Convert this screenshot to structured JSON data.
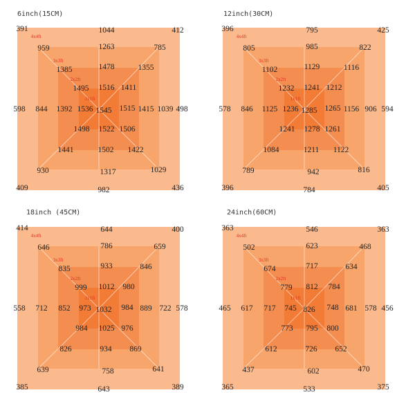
{
  "chart_data": {
    "type": "table",
    "panels": [
      {
        "title": "6inch(15CM)",
        "size_labels": [
          "4x4ft",
          "3x3ft",
          "2x2ft",
          "1x1ft"
        ],
        "rings": [
          {
            "tl": "391",
            "t": "1044",
            "tr": "412",
            "l": "598",
            "r": "498",
            "bl": "409",
            "b": "982",
            "br": "436"
          },
          {
            "tl": "959",
            "t": "1263",
            "tr": "785",
            "l": "844",
            "r": "1039",
            "bl": "930",
            "b": "1317",
            "br": "1029"
          },
          {
            "tl": "1385",
            "t": "1478",
            "tr": "1355",
            "l": "1392",
            "r": "1415",
            "bl": "1441",
            "b": "1502",
            "br": "1422"
          },
          {
            "tl": "1495",
            "t": "1516",
            "tr": "1411",
            "l": "1536",
            "r": "1515",
            "bl": "1498",
            "b": "1522",
            "br": "1506"
          }
        ],
        "center": "1545"
      },
      {
        "title": "12inch(30CM)",
        "size_labels": [
          "4x4ft",
          "3x3ft",
          "2x2ft",
          "1x1ft"
        ],
        "rings": [
          {
            "tl": "396",
            "t": "795",
            "tr": "425",
            "l": "578",
            "r": "594",
            "bl": "396",
            "b": "784",
            "br": "405"
          },
          {
            "tl": "805",
            "t": "985",
            "tr": "822",
            "l": "846",
            "r": "906",
            "bl": "789",
            "b": "942",
            "br": "816"
          },
          {
            "tl": "1102",
            "t": "1129",
            "tr": "1116",
            "l": "1125",
            "r": "1156",
            "bl": "1084",
            "b": "1211",
            "br": "1122"
          },
          {
            "tl": "1232",
            "t": "1241",
            "tr": "1212",
            "l": "1236",
            "r": "1265",
            "bl": "1241",
            "b": "1278",
            "br": "1261"
          }
        ],
        "center": "1285"
      },
      {
        "title": "18inch (45CM)",
        "size_labels": [
          "4x4ft",
          "3x3ft",
          "2x2ft",
          "1x1ft"
        ],
        "rings": [
          {
            "tl": "414",
            "t": "644",
            "tr": "400",
            "l": "558",
            "r": "578",
            "bl": "385",
            "b": "643",
            "br": "389"
          },
          {
            "tl": "646",
            "t": "786",
            "tr": "659",
            "l": "712",
            "r": "722",
            "bl": "639",
            "b": "758",
            "br": "641"
          },
          {
            "tl": "835",
            "t": "933",
            "tr": "846",
            "l": "852",
            "r": "889",
            "bl": "826",
            "b": "934",
            "br": "869"
          },
          {
            "tl": "999",
            "t": "1012",
            "tr": "980",
            "l": "973",
            "r": "984",
            "bl": "984",
            "b": "1025",
            "br": "976"
          }
        ],
        "center": "1032"
      },
      {
        "title": "24inch(60CM)",
        "size_labels": [
          "4x4ft",
          "3x3ft",
          "2x2ft",
          "1x1ft"
        ],
        "rings": [
          {
            "tl": "363",
            "t": "546",
            "tr": "363",
            "l": "465",
            "r": "456",
            "bl": "365",
            "b": "533",
            "br": "375"
          },
          {
            "tl": "502",
            "t": "623",
            "tr": "468",
            "l": "617",
            "r": "578",
            "bl": "437",
            "b": "602",
            "br": "470"
          },
          {
            "tl": "674",
            "t": "717",
            "tr": "634",
            "l": "717",
            "r": "681",
            "bl": "612",
            "b": "726",
            "br": "652"
          },
          {
            "tl": "779",
            "t": "812",
            "tr": "784",
            "l": "745",
            "r": "748",
            "bl": "773",
            "b": "795",
            "br": "800"
          }
        ],
        "center": "826"
      }
    ]
  }
}
